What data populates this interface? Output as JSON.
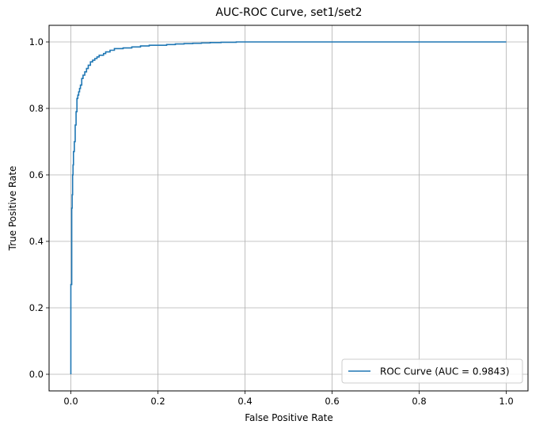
{
  "chart_data": {
    "type": "line",
    "title": "AUC-ROC Curve, set1/set2",
    "xlabel": "False Positive Rate",
    "ylabel": "True Positive Rate",
    "xlim": [
      -0.05,
      1.05
    ],
    "ylim": [
      -0.05,
      1.05
    ],
    "xticks": [
      0.0,
      0.2,
      0.4,
      0.6,
      0.8,
      1.0
    ],
    "yticks": [
      0.0,
      0.2,
      0.4,
      0.6,
      0.8,
      1.0
    ],
    "xtick_labels": [
      "0.0",
      "0.2",
      "0.4",
      "0.6",
      "0.8",
      "1.0"
    ],
    "ytick_labels": [
      "0.0",
      "0.2",
      "0.4",
      "0.6",
      "0.8",
      "1.0"
    ],
    "grid": true,
    "legend_position": "lower-right",
    "series": [
      {
        "name": "ROC Curve (AUC = 0.9843)",
        "color": "#1f77b4",
        "x": [
          0.0,
          0.0,
          0.002,
          0.003,
          0.004,
          0.005,
          0.006,
          0.008,
          0.01,
          0.012,
          0.014,
          0.016,
          0.018,
          0.02,
          0.022,
          0.025,
          0.028,
          0.032,
          0.036,
          0.04,
          0.045,
          0.05,
          0.055,
          0.06,
          0.065,
          0.07,
          0.075,
          0.08,
          0.09,
          0.1,
          0.12,
          0.14,
          0.16,
          0.18,
          0.2,
          0.22,
          0.24,
          0.26,
          0.28,
          0.3,
          0.32,
          0.345,
          0.38,
          1.0
        ],
        "y": [
          0.0,
          0.27,
          0.5,
          0.54,
          0.6,
          0.63,
          0.67,
          0.7,
          0.75,
          0.79,
          0.83,
          0.84,
          0.85,
          0.86,
          0.87,
          0.89,
          0.9,
          0.91,
          0.92,
          0.93,
          0.94,
          0.945,
          0.95,
          0.955,
          0.96,
          0.96,
          0.965,
          0.97,
          0.975,
          0.98,
          0.982,
          0.985,
          0.988,
          0.99,
          0.99,
          0.992,
          0.994,
          0.995,
          0.996,
          0.997,
          0.998,
          0.999,
          1.0,
          1.0
        ]
      }
    ]
  }
}
